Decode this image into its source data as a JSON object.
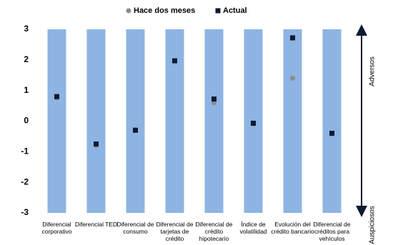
{
  "chart_data": {
    "type": "scatter",
    "categories": [
      "Diferencial corporativo",
      "Diferencial TED",
      "Diferencial de consumo",
      "Diferencial de tarjetas de crédito",
      "Diferencial de crédito hipotecario",
      "Índice de volatilidad",
      "Evolución del crédito bancario",
      "Diferencial de créditos para vehículos"
    ],
    "series": [
      {
        "name": "Hace dos meses",
        "color": "#8c8c8c",
        "marker": "circle",
        "values": [
          0.75,
          -0.8,
          -0.28,
          1.97,
          0.6,
          -0.1,
          1.4,
          -0.4
        ]
      },
      {
        "name": "Actual",
        "color": "#0d1a33",
        "marker": "square",
        "values": [
          0.8,
          -0.75,
          -0.3,
          1.97,
          0.72,
          -0.07,
          2.72,
          -0.4
        ]
      }
    ],
    "band_color": "#8db4e2",
    "ylim": [
      -3,
      3
    ],
    "yticks": [
      -3,
      -2,
      -1,
      0,
      1,
      2,
      3
    ],
    "annotations": [
      "Adversos",
      "Auspiciosos"
    ]
  }
}
